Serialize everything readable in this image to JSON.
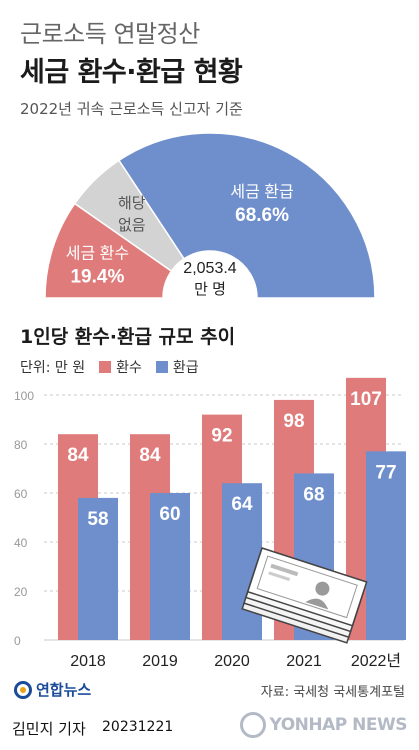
{
  "header": {
    "supertitle": "근로소득 연말정산",
    "title": "세금 환수·환급 현황",
    "basis": "2022년 귀속 근로소득 신고자 기준"
  },
  "pie": {
    "total_value": "2,053.4",
    "total_unit": "만 명",
    "slices": [
      {
        "label": "세금 환수",
        "value": 19.4,
        "value_text": "19.4%",
        "color": "#e07b7b"
      },
      {
        "label_lines": [
          "해당",
          "없음"
        ],
        "value": 12.0,
        "color": "#d3d3d3"
      },
      {
        "label": "세금 환급",
        "value": 68.6,
        "value_text": "68.6%",
        "color": "#6f8fcc"
      }
    ]
  },
  "chart_data": {
    "type": "bar",
    "title": "1인당 환수·환급 규모 추이",
    "unit_label": "단위: 만 원",
    "categories": [
      "2018",
      "2019",
      "2020",
      "2021",
      "2022년"
    ],
    "series": [
      {
        "name": "환수",
        "values": [
          84,
          84,
          92,
          98,
          107
        ],
        "color": "#e07b7b"
      },
      {
        "name": "환급",
        "values": [
          58,
          60,
          64,
          68,
          77
        ],
        "color": "#6f8fcc"
      }
    ],
    "yticks": [
      0,
      20,
      40,
      60,
      80,
      100
    ],
    "ylim": [
      0,
      110
    ],
    "grid": true
  },
  "footer": {
    "source": "자료: 국세청 국세통계포털",
    "logo_text": "연합뉴스",
    "reporter": "김민지 기자",
    "date": "20231221",
    "watermark": "YONHAP NEWS"
  }
}
